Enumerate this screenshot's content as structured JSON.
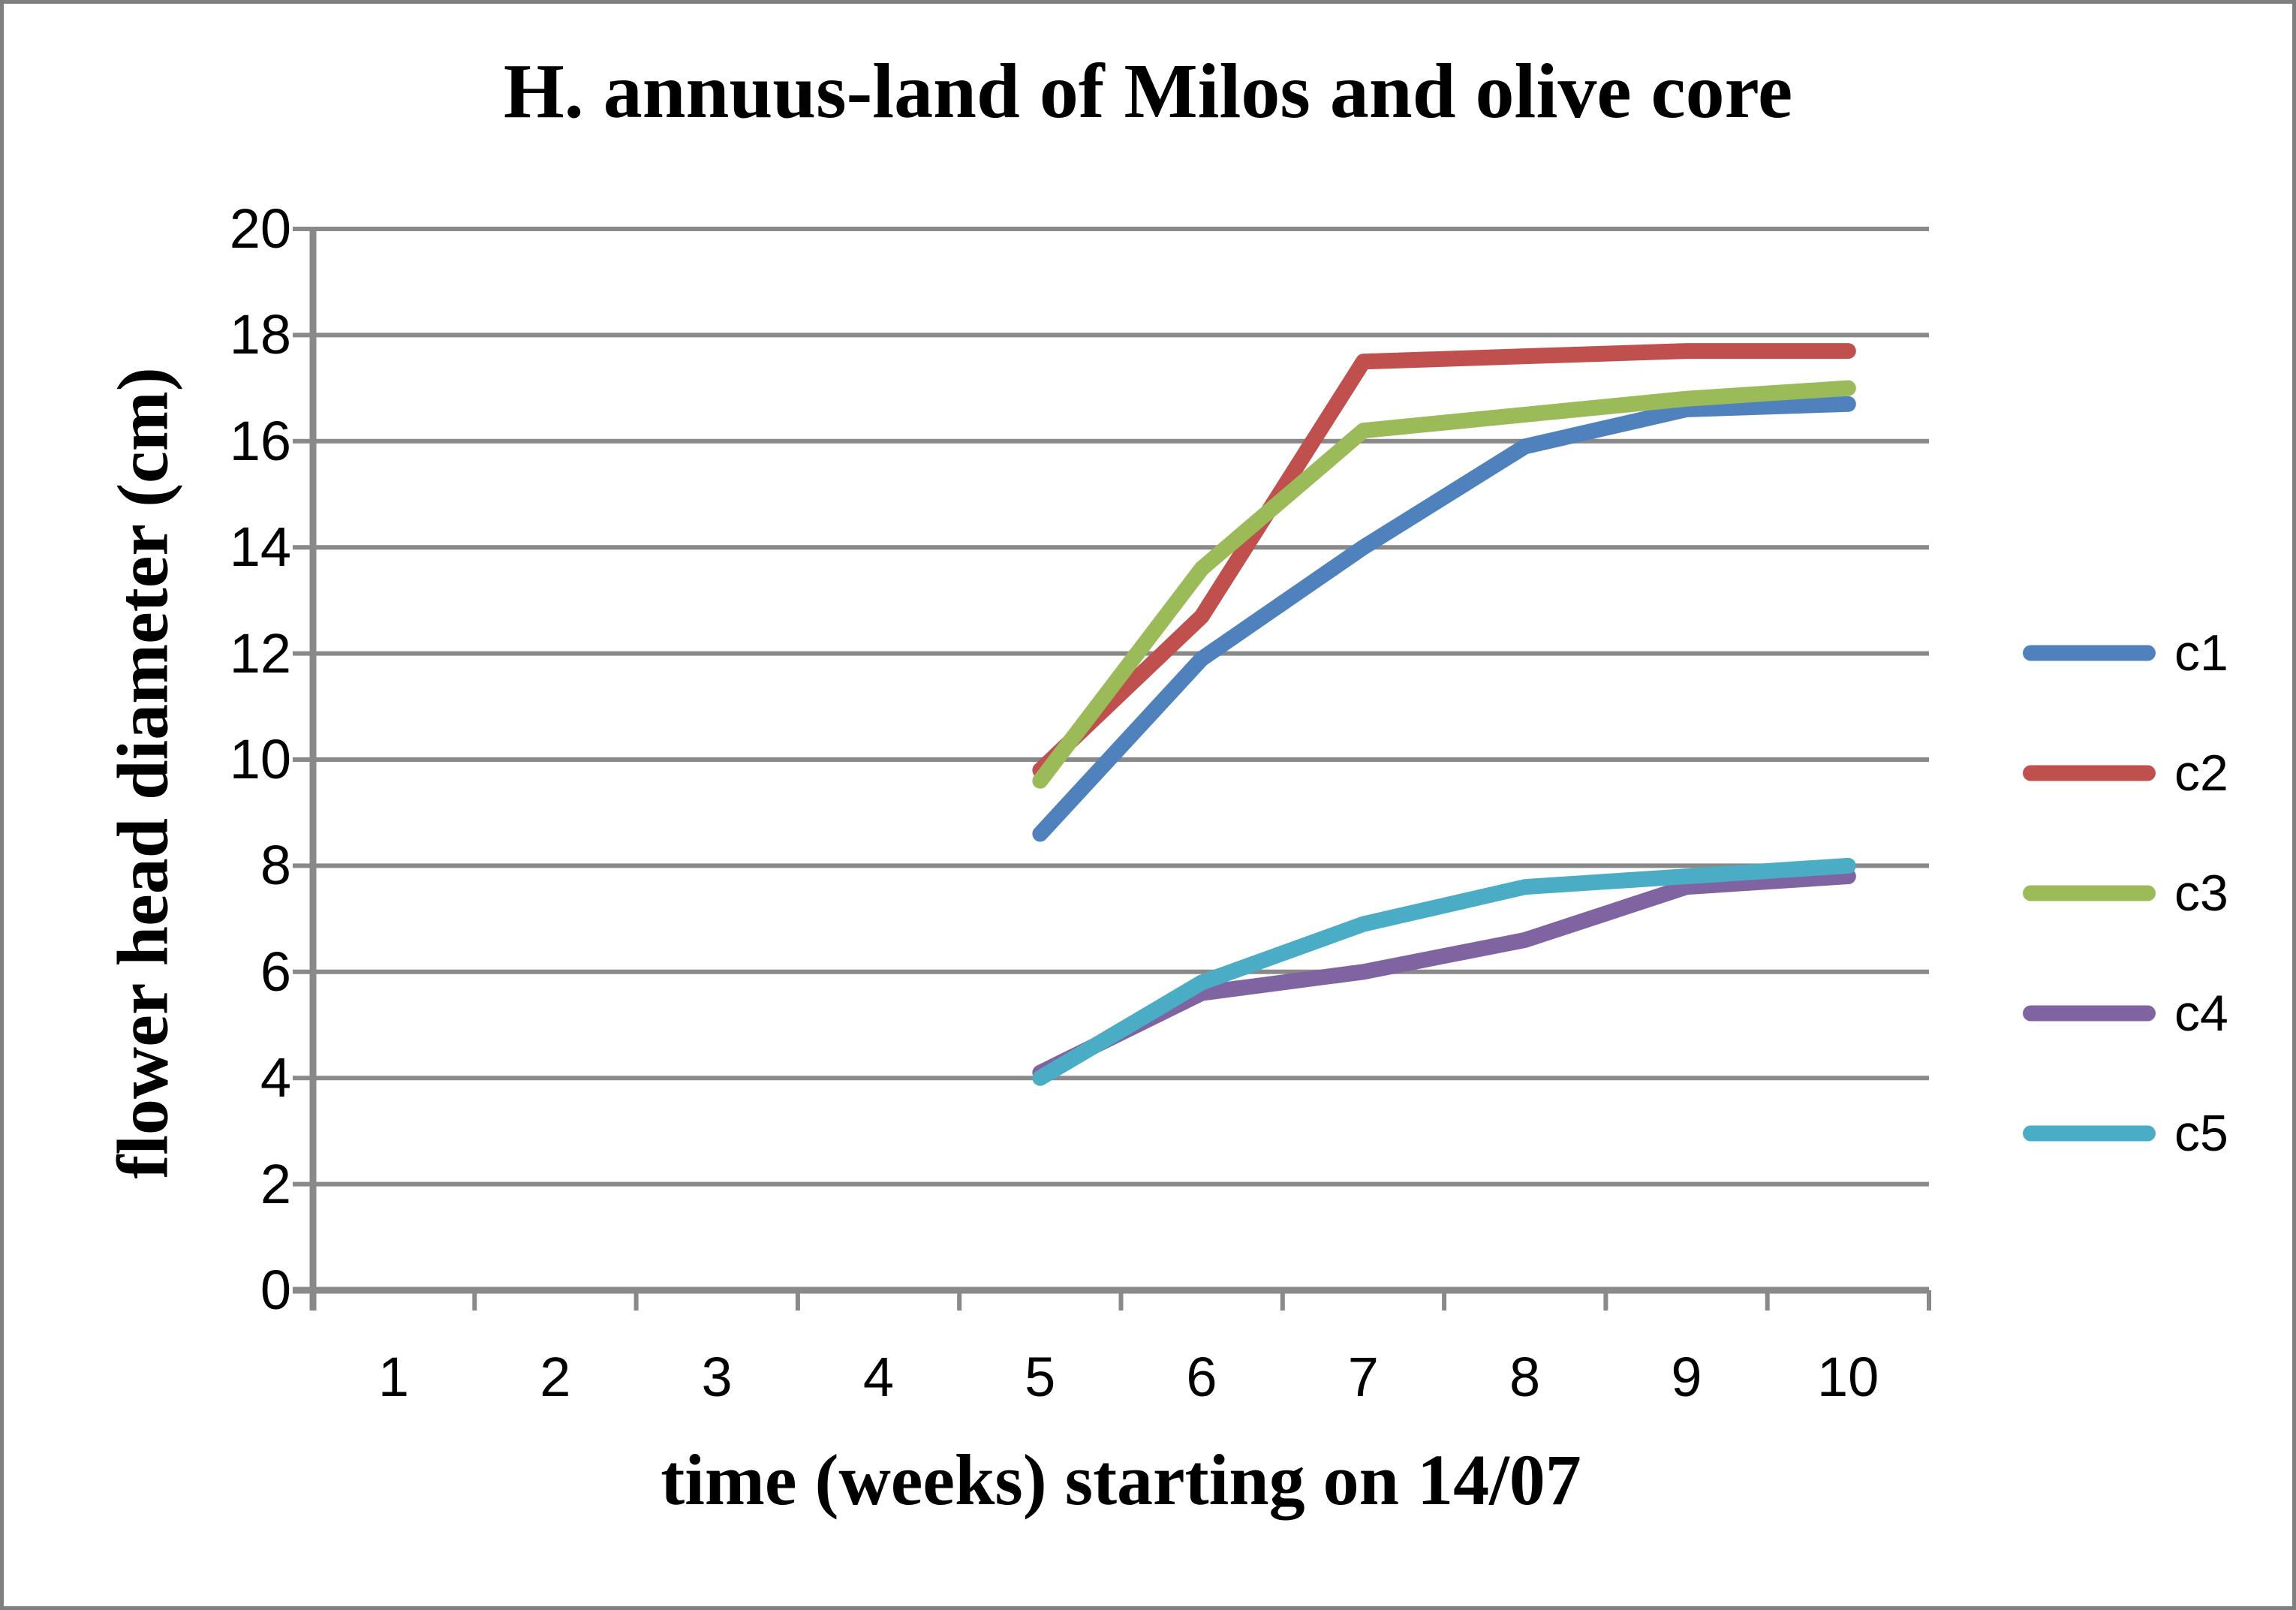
{
  "page": {
    "background": "#FFFFFF",
    "border_color": "#7F7F7F"
  },
  "chart_data": {
    "type": "line",
    "title": "H. annuus-land of Milos and olive core",
    "xlabel": "time (weeks) starting on 14/07",
    "ylabel": "flower head diameter (cm)",
    "categories": [
      1,
      2,
      3,
      4,
      5,
      6,
      7,
      8,
      9,
      10
    ],
    "x_tick_labels": [
      "1",
      "2",
      "3",
      "4",
      "5",
      "6",
      "7",
      "8",
      "9",
      "10"
    ],
    "y_ticks": [
      0,
      2,
      4,
      6,
      8,
      10,
      12,
      14,
      16,
      18,
      20
    ],
    "y_tick_labels": [
      "0",
      "2",
      "4",
      "6",
      "8",
      "10",
      "12",
      "14",
      "16",
      "18",
      "20"
    ],
    "ylim": [
      0,
      20
    ],
    "grid": "horizontal-on",
    "gridline_color": "#898989",
    "axis_color": "#898989",
    "legend_position": "right",
    "series": [
      {
        "name": "c1",
        "color": "#4F81BD",
        "x": [
          5,
          6,
          7,
          8,
          9,
          10
        ],
        "values": [
          8.6,
          11.9,
          14.0,
          15.9,
          16.6,
          16.7
        ]
      },
      {
        "name": "c2",
        "color": "#C0504D",
        "x": [
          5,
          6,
          7,
          8,
          9,
          10
        ],
        "values": [
          9.8,
          12.7,
          17.5,
          17.6,
          17.7,
          17.7
        ]
      },
      {
        "name": "c3",
        "color": "#9BBB59",
        "x": [
          5,
          6,
          7,
          8,
          9,
          10
        ],
        "values": [
          9.6,
          13.6,
          16.2,
          16.5,
          16.8,
          17.0
        ]
      },
      {
        "name": "c4",
        "color": "#8064A2",
        "x": [
          5,
          6,
          7,
          8,
          9,
          10
        ],
        "values": [
          4.1,
          5.6,
          6.0,
          6.6,
          7.6,
          7.8
        ]
      },
      {
        "name": "c5",
        "color": "#4BACC6",
        "x": [
          5,
          6,
          7,
          8,
          9,
          10
        ],
        "values": [
          4.0,
          5.8,
          6.9,
          7.6,
          7.8,
          8.0
        ]
      }
    ]
  }
}
